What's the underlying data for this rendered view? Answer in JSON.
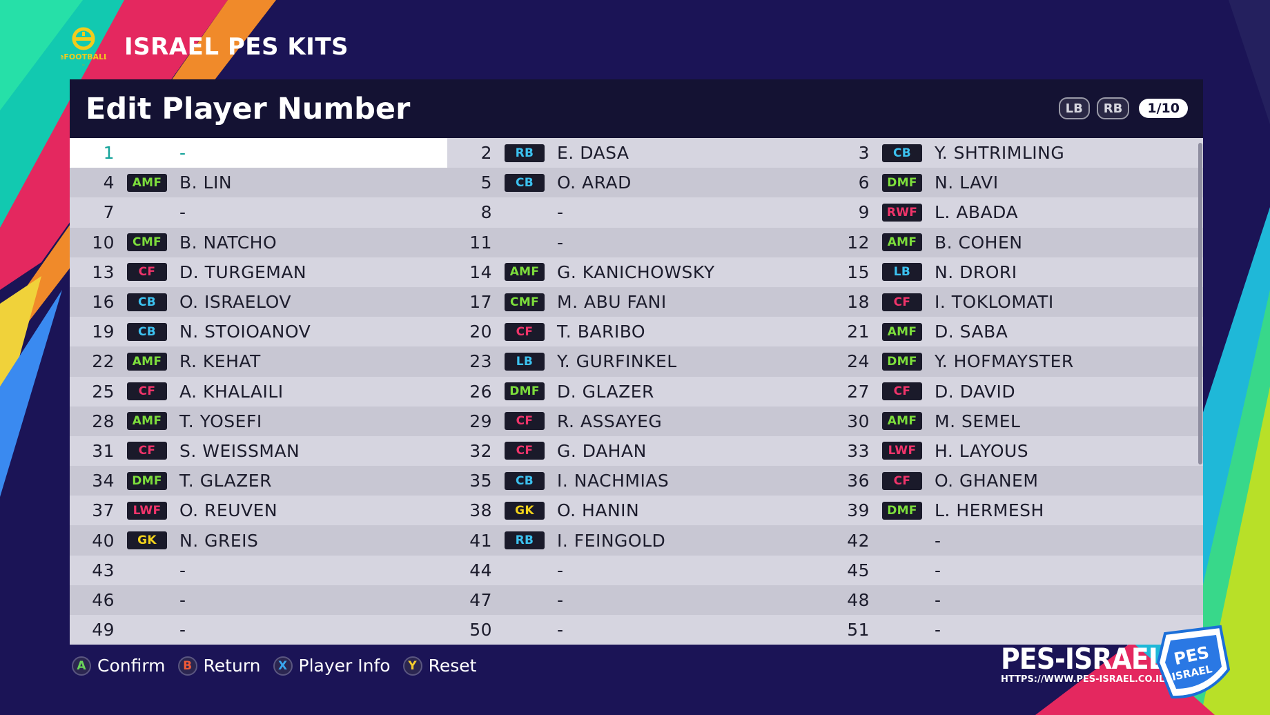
{
  "app": {
    "title": "ISRAEL PES KITS",
    "logo_text": "eFOOTBALL"
  },
  "panel": {
    "title": "Edit Player Number",
    "lb_label": "LB",
    "rb_label": "RB",
    "page_indicator": "1/10"
  },
  "colors": {
    "background": "#1b1456",
    "header": "#141233",
    "selected_text": "#14a39a",
    "defender": "#3cc2f0",
    "midfielder": "#7dde3c",
    "forward": "#f0346a",
    "goalkeeper": "#f2d21c"
  },
  "rows": [
    {
      "num": "1",
      "pos": "",
      "name": "-",
      "selected": true
    },
    {
      "num": "2",
      "pos": "RB",
      "name": "E. DASA"
    },
    {
      "num": "3",
      "pos": "CB",
      "name": "Y. SHTRIMLING"
    },
    {
      "num": "4",
      "pos": "AMF",
      "name": "B. LIN"
    },
    {
      "num": "5",
      "pos": "CB",
      "name": "O. ARAD"
    },
    {
      "num": "6",
      "pos": "DMF",
      "name": "N. LAVI"
    },
    {
      "num": "7",
      "pos": "",
      "name": "-"
    },
    {
      "num": "8",
      "pos": "",
      "name": "-"
    },
    {
      "num": "9",
      "pos": "RWF",
      "name": "L. ABADA"
    },
    {
      "num": "10",
      "pos": "CMF",
      "name": "B. NATCHO"
    },
    {
      "num": "11",
      "pos": "",
      "name": "-"
    },
    {
      "num": "12",
      "pos": "AMF",
      "name": "B. COHEN"
    },
    {
      "num": "13",
      "pos": "CF",
      "name": "D. TURGEMAN"
    },
    {
      "num": "14",
      "pos": "AMF",
      "name": "G. KANICHOWSKY"
    },
    {
      "num": "15",
      "pos": "LB",
      "name": "N. DRORI"
    },
    {
      "num": "16",
      "pos": "CB",
      "name": "O. ISRAELOV"
    },
    {
      "num": "17",
      "pos": "CMF",
      "name": "M. ABU FANI"
    },
    {
      "num": "18",
      "pos": "CF",
      "name": "I. TOKLOMATI"
    },
    {
      "num": "19",
      "pos": "CB",
      "name": "N. STOIOANOV"
    },
    {
      "num": "20",
      "pos": "CF",
      "name": "T. BARIBO"
    },
    {
      "num": "21",
      "pos": "AMF",
      "name": "D. SABA"
    },
    {
      "num": "22",
      "pos": "AMF",
      "name": "R. KEHAT"
    },
    {
      "num": "23",
      "pos": "LB",
      "name": "Y. GURFINKEL"
    },
    {
      "num": "24",
      "pos": "DMF",
      "name": "Y. HOFMAYSTER"
    },
    {
      "num": "25",
      "pos": "CF",
      "name": "A. KHALAILI"
    },
    {
      "num": "26",
      "pos": "DMF",
      "name": "D. GLAZER"
    },
    {
      "num": "27",
      "pos": "CF",
      "name": "D. DAVID"
    },
    {
      "num": "28",
      "pos": "AMF",
      "name": "T. YOSEFI"
    },
    {
      "num": "29",
      "pos": "CF",
      "name": "R. ASSAYEG"
    },
    {
      "num": "30",
      "pos": "AMF",
      "name": "M. SEMEL"
    },
    {
      "num": "31",
      "pos": "CF",
      "name": "S. WEISSMAN"
    },
    {
      "num": "32",
      "pos": "CF",
      "name": "G. DAHAN"
    },
    {
      "num": "33",
      "pos": "LWF",
      "name": "H. LAYOUS"
    },
    {
      "num": "34",
      "pos": "DMF",
      "name": "T. GLAZER"
    },
    {
      "num": "35",
      "pos": "CB",
      "name": "I. NACHMIAS"
    },
    {
      "num": "36",
      "pos": "CF",
      "name": "O. GHANEM"
    },
    {
      "num": "37",
      "pos": "LWF",
      "name": "O. REUVEN"
    },
    {
      "num": "38",
      "pos": "GK",
      "name": "O. HANIN"
    },
    {
      "num": "39",
      "pos": "DMF",
      "name": "L. HERMESH"
    },
    {
      "num": "40",
      "pos": "GK",
      "name": "N. GREIS"
    },
    {
      "num": "41",
      "pos": "RB",
      "name": "I. FEINGOLD"
    },
    {
      "num": "42",
      "pos": "",
      "name": "-"
    },
    {
      "num": "43",
      "pos": "",
      "name": "-"
    },
    {
      "num": "44",
      "pos": "",
      "name": "-"
    },
    {
      "num": "45",
      "pos": "",
      "name": "-"
    },
    {
      "num": "46",
      "pos": "",
      "name": "-"
    },
    {
      "num": "47",
      "pos": "",
      "name": "-"
    },
    {
      "num": "48",
      "pos": "",
      "name": "-"
    },
    {
      "num": "49",
      "pos": "",
      "name": "-"
    },
    {
      "num": "50",
      "pos": "",
      "name": "-"
    },
    {
      "num": "51",
      "pos": "",
      "name": "-"
    }
  ],
  "footer": {
    "buttons": [
      {
        "key": "A",
        "label": "Confirm"
      },
      {
        "key": "B",
        "label": "Return"
      },
      {
        "key": "X",
        "label": "Player Info"
      },
      {
        "key": "Y",
        "label": "Reset"
      }
    ]
  },
  "watermark": {
    "brand": "PES-ISRAEL",
    "url": "HTTPS://WWW.PES-ISRAEL.CO.IL/",
    "badge_text": "PES ISRAEL"
  }
}
